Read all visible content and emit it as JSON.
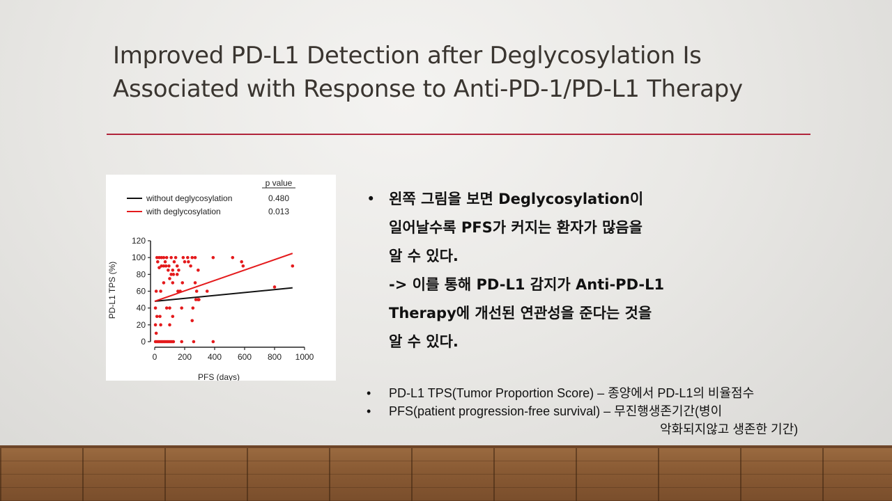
{
  "slide": {
    "title_line1": "Improved PD-L1 Detection after Deglycosylation Is",
    "title_line2": "Associated with Response to Anti-PD-1/PD-L1 Therapy",
    "accent_color": "#b0243a"
  },
  "bullets": {
    "dot": "•",
    "lines": [
      "왼쪽 그림을 보면 Deglycosylation이",
      "일어날수록 PFS가 커지는 환자가 많음을",
      "알 수 있다.",
      " -> 이를 통해 PD-L1 감지가 Anti-PD-L1",
      "Therapy에 개선된 연관성을 준다는 것을",
      "알 수 있다."
    ]
  },
  "notes": {
    "dot": "•",
    "item1": "PD-L1 TPS(Tumor Proportion Score) – 종양에서 PD-L1의 비율점수",
    "item2": "PFS(patient progression-free survival) – 무진행생존기간(병이",
    "item2_cont": "악화되지않고 생존한 기간)"
  },
  "chart_data": {
    "type": "scatter",
    "xlabel": "PFS (days)",
    "ylabel": "PD-L1 TPS (%)",
    "xlim": [
      0,
      1000
    ],
    "ylim": [
      0,
      120
    ],
    "xticks": [
      0,
      200,
      400,
      600,
      800,
      1000
    ],
    "yticks": [
      0,
      20,
      40,
      60,
      80,
      100,
      120
    ],
    "legend_header": "p value",
    "series": [
      {
        "name": "without deglycosylation",
        "color": "#111111",
        "p_value": "0.480",
        "fit_line": {
          "x": [
            0,
            920
          ],
          "y": [
            48,
            64
          ]
        },
        "points": []
      },
      {
        "name": "with deglycosylation",
        "color": "#e41a1c",
        "p_value": "0.013",
        "fit_line": {
          "x": [
            0,
            920
          ],
          "y": [
            48,
            105
          ]
        },
        "points": [
          {
            "x": 5,
            "y": 0
          },
          {
            "x": 15,
            "y": 0
          },
          {
            "x": 25,
            "y": 0
          },
          {
            "x": 35,
            "y": 0
          },
          {
            "x": 45,
            "y": 0
          },
          {
            "x": 55,
            "y": 0
          },
          {
            "x": 65,
            "y": 0
          },
          {
            "x": 75,
            "y": 0
          },
          {
            "x": 85,
            "y": 0
          },
          {
            "x": 95,
            "y": 0
          },
          {
            "x": 105,
            "y": 0
          },
          {
            "x": 115,
            "y": 0
          },
          {
            "x": 125,
            "y": 0
          },
          {
            "x": 180,
            "y": 0
          },
          {
            "x": 260,
            "y": 0
          },
          {
            "x": 390,
            "y": 0
          },
          {
            "x": 10,
            "y": 10
          },
          {
            "x": 5,
            "y": 20
          },
          {
            "x": 40,
            "y": 20
          },
          {
            "x": 15,
            "y": 30
          },
          {
            "x": 35,
            "y": 30
          },
          {
            "x": 120,
            "y": 30
          },
          {
            "x": 100,
            "y": 20
          },
          {
            "x": 250,
            "y": 25
          },
          {
            "x": 5,
            "y": 40
          },
          {
            "x": 80,
            "y": 40
          },
          {
            "x": 100,
            "y": 40
          },
          {
            "x": 180,
            "y": 40
          },
          {
            "x": 255,
            "y": 40
          },
          {
            "x": 275,
            "y": 50
          },
          {
            "x": 290,
            "y": 50
          },
          {
            "x": 295,
            "y": 50
          },
          {
            "x": 10,
            "y": 60
          },
          {
            "x": 40,
            "y": 60
          },
          {
            "x": 155,
            "y": 60
          },
          {
            "x": 170,
            "y": 60
          },
          {
            "x": 280,
            "y": 60
          },
          {
            "x": 350,
            "y": 60
          },
          {
            "x": 60,
            "y": 70
          },
          {
            "x": 120,
            "y": 70
          },
          {
            "x": 185,
            "y": 70
          },
          {
            "x": 270,
            "y": 70
          },
          {
            "x": 100,
            "y": 75
          },
          {
            "x": 110,
            "y": 80
          },
          {
            "x": 125,
            "y": 80
          },
          {
            "x": 150,
            "y": 80
          },
          {
            "x": 90,
            "y": 85
          },
          {
            "x": 120,
            "y": 85
          },
          {
            "x": 160,
            "y": 85
          },
          {
            "x": 30,
            "y": 88
          },
          {
            "x": 45,
            "y": 90
          },
          {
            "x": 60,
            "y": 90
          },
          {
            "x": 75,
            "y": 90
          },
          {
            "x": 95,
            "y": 90
          },
          {
            "x": 150,
            "y": 90
          },
          {
            "x": 240,
            "y": 90
          },
          {
            "x": 290,
            "y": 85
          },
          {
            "x": 20,
            "y": 95
          },
          {
            "x": 70,
            "y": 95
          },
          {
            "x": 130,
            "y": 95
          },
          {
            "x": 200,
            "y": 95
          },
          {
            "x": 225,
            "y": 95
          },
          {
            "x": 15,
            "y": 100
          },
          {
            "x": 30,
            "y": 100
          },
          {
            "x": 45,
            "y": 100
          },
          {
            "x": 60,
            "y": 100
          },
          {
            "x": 80,
            "y": 100
          },
          {
            "x": 110,
            "y": 100
          },
          {
            "x": 140,
            "y": 100
          },
          {
            "x": 190,
            "y": 100
          },
          {
            "x": 220,
            "y": 100
          },
          {
            "x": 250,
            "y": 100
          },
          {
            "x": 270,
            "y": 100
          },
          {
            "x": 390,
            "y": 100
          },
          {
            "x": 520,
            "y": 100
          },
          {
            "x": 580,
            "y": 95
          },
          {
            "x": 590,
            "y": 90
          },
          {
            "x": 800,
            "y": 65
          },
          {
            "x": 920,
            "y": 90
          }
        ]
      }
    ]
  }
}
